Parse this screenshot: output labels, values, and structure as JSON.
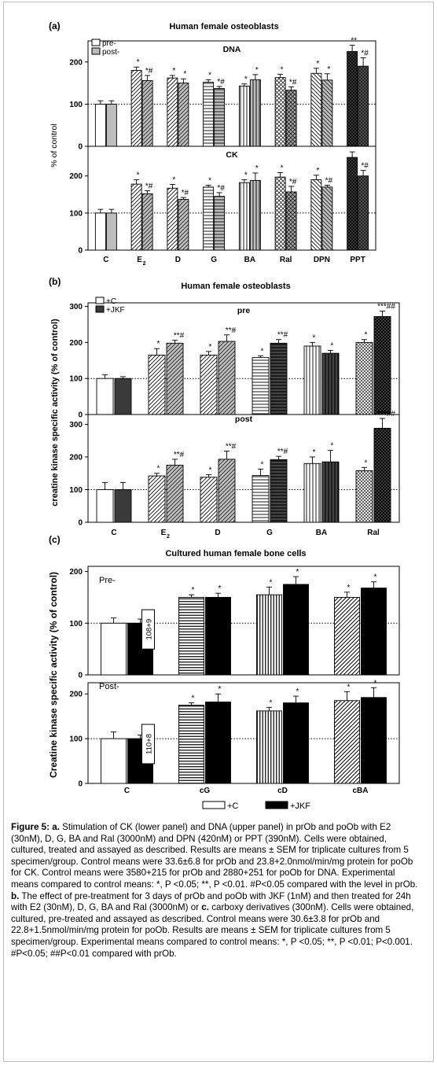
{
  "chart_data": [
    {
      "id": "a",
      "panel_label": "(a)",
      "title": "Human female osteoblasts",
      "type": "bar",
      "ylabel": "% of control",
      "categories": [
        "C",
        "E2",
        "D",
        "G",
        "BA",
        "Ral",
        "DPN",
        "PPT"
      ],
      "legend": [
        "pre-",
        "post-"
      ],
      "subplots": [
        {
          "name": "DNA",
          "ylim": [
            0,
            250
          ],
          "ticks": [
            0,
            100,
            200
          ],
          "series": [
            {
              "name": "pre-",
              "values": [
                100,
                180,
                162,
                152,
                143,
                163,
                173,
                225
              ],
              "errors": [
                8,
                8,
                6,
                6,
                5,
                8,
                12,
                15
              ]
            },
            {
              "name": "post-",
              "values": [
                100,
                156,
                150,
                137,
                158,
                133,
                157,
                190
              ],
              "errors": [
                8,
                12,
                10,
                5,
                12,
                8,
                15,
                20
              ]
            }
          ],
          "annotations": [
            [
              "",
              "*",
              "*",
              "*",
              "*",
              "*",
              "*",
              "**"
            ],
            [
              "",
              "*#",
              "*",
              "*#",
              "*",
              "*#",
              "*",
              "*#"
            ]
          ]
        },
        {
          "name": "CK",
          "ylim": [
            0,
            280
          ],
          "ticks": [
            0,
            100,
            200
          ],
          "series": [
            {
              "name": "pre-",
              "values": [
                100,
                178,
                167,
                170,
                182,
                197,
                190,
                250
              ],
              "errors": [
                10,
                12,
                10,
                5,
                8,
                12,
                12,
                15
              ]
            },
            {
              "name": "post-",
              "values": [
                100,
                152,
                137,
                145,
                188,
                157,
                170,
                200
              ],
              "errors": [
                10,
                8,
                5,
                10,
                20,
                15,
                5,
                15
              ]
            }
          ],
          "annotations": [
            [
              "",
              "*",
              "*",
              "*",
              "*",
              "*",
              "*",
              "**"
            ],
            [
              "",
              "*#",
              "*#",
              "*#",
              "*",
              "*#",
              "*#",
              "*#"
            ]
          ]
        }
      ]
    },
    {
      "id": "b",
      "panel_label": "(b)",
      "title": "Human female osteoblasts",
      "type": "bar",
      "ylabel": "creatine kinase specific activity  (% of control)",
      "categories": [
        "C",
        "E2",
        "D",
        "G",
        "BA",
        "Ral"
      ],
      "legend": [
        "+C",
        "+JKF"
      ],
      "subplots": [
        {
          "name": "pre",
          "ylim": [
            0,
            310
          ],
          "ticks": [
            0,
            100,
            200,
            300
          ],
          "series": [
            {
              "name": "+C",
              "values": [
                100,
                165,
                165,
                158,
                190,
                200
              ],
              "errors": [
                10,
                18,
                10,
                5,
                10,
                8
              ]
            },
            {
              "name": "+JKF",
              "values": [
                100,
                198,
                203,
                198,
                170,
                272
              ],
              "errors": [
                5,
                8,
                18,
                10,
                8,
                15
              ]
            }
          ],
          "annotations": [
            [
              "",
              "*",
              "*",
              "*",
              "*",
              "*"
            ],
            [
              "",
              "**#",
              "**#",
              "**#",
              "*",
              "***##"
            ]
          ]
        },
        {
          "name": "post",
          "ylim": [
            0,
            330
          ],
          "ticks": [
            0,
            100,
            200,
            300
          ],
          "series": [
            {
              "name": "+C",
              "values": [
                100,
                142,
                138,
                143,
                180,
                158
              ],
              "errors": [
                22,
                8,
                8,
                20,
                20,
                10
              ]
            },
            {
              "name": "+JKF",
              "values": [
                100,
                175,
                193,
                192,
                185,
                288
              ],
              "errors": [
                22,
                18,
                25,
                10,
                35,
                30
              ]
            }
          ],
          "annotations": [
            [
              "",
              "*",
              "*",
              "*",
              "*",
              "*"
            ],
            [
              "",
              "**#",
              "**#",
              "**#",
              "*",
              "***##"
            ]
          ]
        }
      ]
    },
    {
      "id": "c",
      "panel_label": "(c)",
      "title": "Cultured human female bone cells",
      "type": "bar",
      "ylabel": "Creatine kinase specific activity (% of control)",
      "categories": [
        "C",
        "cG",
        "cD",
        "cBA"
      ],
      "legend": [
        "+C",
        "+JKF"
      ],
      "subplots": [
        {
          "name": "Pre-",
          "ylim": [
            0,
            210
          ],
          "ticks": [
            0,
            100,
            200
          ],
          "series": [
            {
              "name": "+C",
              "values": [
                100,
                150,
                155,
                150
              ],
              "errors": [
                10,
                5,
                15,
                10
              ]
            },
            {
              "name": "+JKF",
              "values": [
                100,
                150,
                175,
                168
              ],
              "errors": [
                8,
                8,
                15,
                12
              ]
            }
          ],
          "annotations": [
            [
              "",
              "*",
              "*",
              "*"
            ],
            [
              "",
              "*",
              "*",
              "*"
            ]
          ],
          "box_label": "108+9"
        },
        {
          "name": "Post-",
          "ylim": [
            0,
            225
          ],
          "ticks": [
            0,
            100,
            200
          ],
          "series": [
            {
              "name": "+C",
              "values": [
                100,
                175,
                162,
                185
              ],
              "errors": [
                15,
                5,
                8,
                20
              ]
            },
            {
              "name": "+JKF",
              "values": [
                100,
                182,
                180,
                192
              ],
              "errors": [
                8,
                18,
                15,
                22
              ]
            }
          ],
          "annotations": [
            [
              "",
              "*",
              "*",
              "*"
            ],
            [
              "",
              "*",
              "*",
              "*"
            ]
          ],
          "box_label": "110+8"
        }
      ]
    }
  ],
  "caption": {
    "figure_label": "Figure 5:",
    "a_label": "a.",
    "a_text": "Stimulation of CK (lower panel) and DNA (upper panel) in prOb and poOb with E2 (30nM), D, G, BA and Ral (3000nM) and DPN (420nM) or PPT (390nM). Cells were obtained, cultured, treated and assayed as described. Results are means ± SEM for triplicate cultures from 5 specimen/group. Control means were 33.6±6.8 for prOb and 23.8+2.0nmol/min/mg protein for poOb for CK. Control means were 3580+215 for prOb and 2880+251 for poOb for DNA. Experimental means compared to control means: *, P <0.05; **, P <0.01. #P<0.05 compared with the level in prOb.",
    "b_label": "b.",
    "b_text": "The effect of pre-treatment for 3 days of prOb and poOb with JKF (1nM) and then treated for 24h with E2 (30nM), D, G, BA and Ral (3000nM) or",
    "c_label": "c.",
    "c_text": "carboxy derivatives (300nM). Cells were obtained, cultured, pre-treated and assayed as described. Control means were 30.6±3.8 for prOb and 22.8+1.5nmol/min/mg protein for poOb. Results are means ± SEM for triplicate cultures from 5 specimen/group. Experimental means compared to control means: *, P <0.05; **, P <0.01; P<0.001. #P<0.05; ##P<0.01 compared with prOb."
  }
}
